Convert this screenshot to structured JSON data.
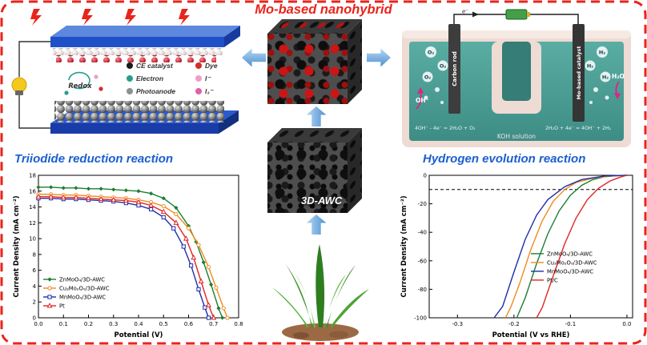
{
  "title": "Mo-based nanohybrid",
  "colors": {
    "border_red": "#e8241c",
    "section_blue": "#1a5fd0",
    "arrow_blue": "#4d8fd0",
    "solution_teal": "#4a9f95"
  },
  "left_panel": {
    "section_title": "Triiodide reduction reaction",
    "redox_label": "Redox",
    "legend": [
      {
        "label": "CE catalyst",
        "color": "#1a1a1a"
      },
      {
        "label": "Dye",
        "color": "#d42b2b"
      },
      {
        "label": "Electron",
        "color": "#2a9d8f"
      },
      {
        "label": "I⁻",
        "color": "#ef9ec7"
      },
      {
        "label": "Photoanode",
        "color": "#8f8f8f"
      },
      {
        "label": "I₃⁻",
        "color": "#e060a8"
      }
    ]
  },
  "center_panel": {
    "material_label": "3D-AWC"
  },
  "right_panel": {
    "section_title": "Hydrogen evolution reaction",
    "electron_label": "e⁻",
    "left_electrode": "Carbon rod",
    "right_electrode": "Mo-based catalyst",
    "anode_equation": "4OH⁻ - 4e⁻ = 2H₂O + O₂",
    "cathode_equation": "2H₂O + 4e⁻ = 4OH⁻ + 2H₂",
    "solution_label": "KOH solution",
    "oh_label": "OH⁻",
    "h2o_label": "H₂O",
    "o2_label": "O₂",
    "h2_label": "H₂"
  },
  "chart_data": [
    {
      "type": "line",
      "title": "",
      "xlabel": "Potential (V)",
      "ylabel": "Current Density (mA cm⁻²)",
      "xlim": [
        0.0,
        0.8
      ],
      "ylim": [
        0,
        18
      ],
      "xticks": [
        0,
        0.1,
        0.2,
        0.3,
        0.4,
        0.5,
        0.6,
        0.7,
        0.8
      ],
      "xtick_labels": [
        "0.0",
        "0.1",
        "0.2",
        "0.3",
        "0.4",
        "0.5",
        "0.6",
        "0.7",
        "0.8"
      ],
      "yticks": [
        0,
        2,
        4,
        6,
        8,
        10,
        12,
        14,
        16,
        18
      ],
      "ytick_labels": [
        "0",
        "2",
        "4",
        "6",
        "8",
        "10",
        "12",
        "14",
        "16",
        "18"
      ],
      "grid": false,
      "legend_pos": "bottom-left",
      "series": [
        {
          "name": "ZnMoO₄/3D-AWC",
          "color": "#1b7e33",
          "marker": "diamond",
          "x": [
            0,
            0.05,
            0.1,
            0.15,
            0.2,
            0.25,
            0.3,
            0.35,
            0.4,
            0.45,
            0.5,
            0.55,
            0.6,
            0.63,
            0.66,
            0.69,
            0.72,
            0.735
          ],
          "y": [
            16.5,
            16.5,
            16.4,
            16.4,
            16.3,
            16.3,
            16.2,
            16.1,
            16.0,
            15.7,
            15.1,
            13.9,
            11.6,
            9.6,
            7.0,
            4.2,
            1.2,
            0
          ]
        },
        {
          "name": "Cu₃Mo₂O₉/3D-AWC",
          "color": "#f08a1d",
          "marker": "circle",
          "x": [
            0,
            0.05,
            0.1,
            0.15,
            0.2,
            0.25,
            0.3,
            0.35,
            0.4,
            0.45,
            0.5,
            0.55,
            0.6,
            0.64,
            0.68,
            0.71,
            0.74,
            0.755
          ],
          "y": [
            15.6,
            15.6,
            15.5,
            15.5,
            15.4,
            15.3,
            15.2,
            15.1,
            14.9,
            14.6,
            14.1,
            13.1,
            11.3,
            9.2,
            6.4,
            3.8,
            1.2,
            0
          ]
        },
        {
          "name": "MnMoO₄/3D-AWC",
          "color": "#1f2da8",
          "marker": "square",
          "x": [
            0,
            0.05,
            0.1,
            0.15,
            0.2,
            0.25,
            0.3,
            0.35,
            0.4,
            0.45,
            0.5,
            0.54,
            0.58,
            0.61,
            0.64,
            0.665,
            0.68
          ],
          "y": [
            15.1,
            15.1,
            15.0,
            15.0,
            14.9,
            14.8,
            14.7,
            14.5,
            14.2,
            13.7,
            12.7,
            11.3,
            9.0,
            6.6,
            3.6,
            1.3,
            0
          ]
        },
        {
          "name": "Pt",
          "color": "#e02424",
          "marker": "triangle",
          "x": [
            0,
            0.05,
            0.1,
            0.15,
            0.2,
            0.25,
            0.3,
            0.35,
            0.4,
            0.45,
            0.5,
            0.55,
            0.59,
            0.62,
            0.65,
            0.68,
            0.7
          ],
          "y": [
            15.3,
            15.3,
            15.2,
            15.2,
            15.1,
            15.0,
            14.9,
            14.8,
            14.6,
            14.2,
            13.4,
            12.0,
            10.0,
            7.6,
            4.6,
            1.6,
            0
          ]
        }
      ]
    },
    {
      "type": "line",
      "title": "",
      "xlabel": "Potential (V vs RHE)",
      "ylabel": "Current Density (mA cm⁻²)",
      "xlim": [
        -0.35,
        0.01
      ],
      "ylim": [
        -100,
        0
      ],
      "xticks": [
        -0.3,
        -0.2,
        -0.1,
        0.0
      ],
      "xtick_labels": [
        "-0.3",
        "-0.2",
        "-0.1",
        "0.0"
      ],
      "yticks": [
        0,
        -20,
        -40,
        -60,
        -80,
        -100
      ],
      "ytick_labels": [
        "0",
        "-20",
        "-40",
        "-60",
        "-80",
        "-100"
      ],
      "grid": false,
      "ref_line_y": -10,
      "legend_pos": "bottom-right",
      "series": [
        {
          "name": "ZnMoO₄/3D-AWC",
          "color": "#1b7e33",
          "marker": "none",
          "x": [
            0.0,
            -0.02,
            -0.04,
            -0.06,
            -0.08,
            -0.1,
            -0.12,
            -0.14,
            -0.16,
            -0.18,
            -0.195
          ],
          "y": [
            0,
            -0.3,
            -1,
            -3,
            -7,
            -14,
            -25,
            -41,
            -62,
            -86,
            -100
          ]
        },
        {
          "name": "Cu₃Mo₂O₉/3D-AWC",
          "color": "#f08a1d",
          "marker": "none",
          "x": [
            0.0,
            -0.03,
            -0.06,
            -0.09,
            -0.11,
            -0.13,
            -0.15,
            -0.17,
            -0.19,
            -0.205,
            -0.215
          ],
          "y": [
            0,
            -0.5,
            -2,
            -5,
            -10,
            -18,
            -32,
            -52,
            -76,
            -92,
            -100
          ]
        },
        {
          "name": "MnMoO₄/3D-AWC",
          "color": "#1f2da8",
          "marker": "none",
          "x": [
            0.0,
            -0.04,
            -0.08,
            -0.11,
            -0.14,
            -0.16,
            -0.18,
            -0.2,
            -0.22,
            -0.235
          ],
          "y": [
            0,
            -0.5,
            -3,
            -8,
            -17,
            -28,
            -45,
            -68,
            -92,
            -100
          ]
        },
        {
          "name": "Pt/C",
          "color": "#e02424",
          "marker": "none",
          "x": [
            0.0,
            -0.01,
            -0.03,
            -0.05,
            -0.07,
            -0.09,
            -0.11,
            -0.13,
            -0.15,
            -0.16
          ],
          "y": [
            0,
            -1,
            -4,
            -9,
            -17,
            -30,
            -48,
            -70,
            -93,
            -100
          ]
        }
      ]
    }
  ]
}
